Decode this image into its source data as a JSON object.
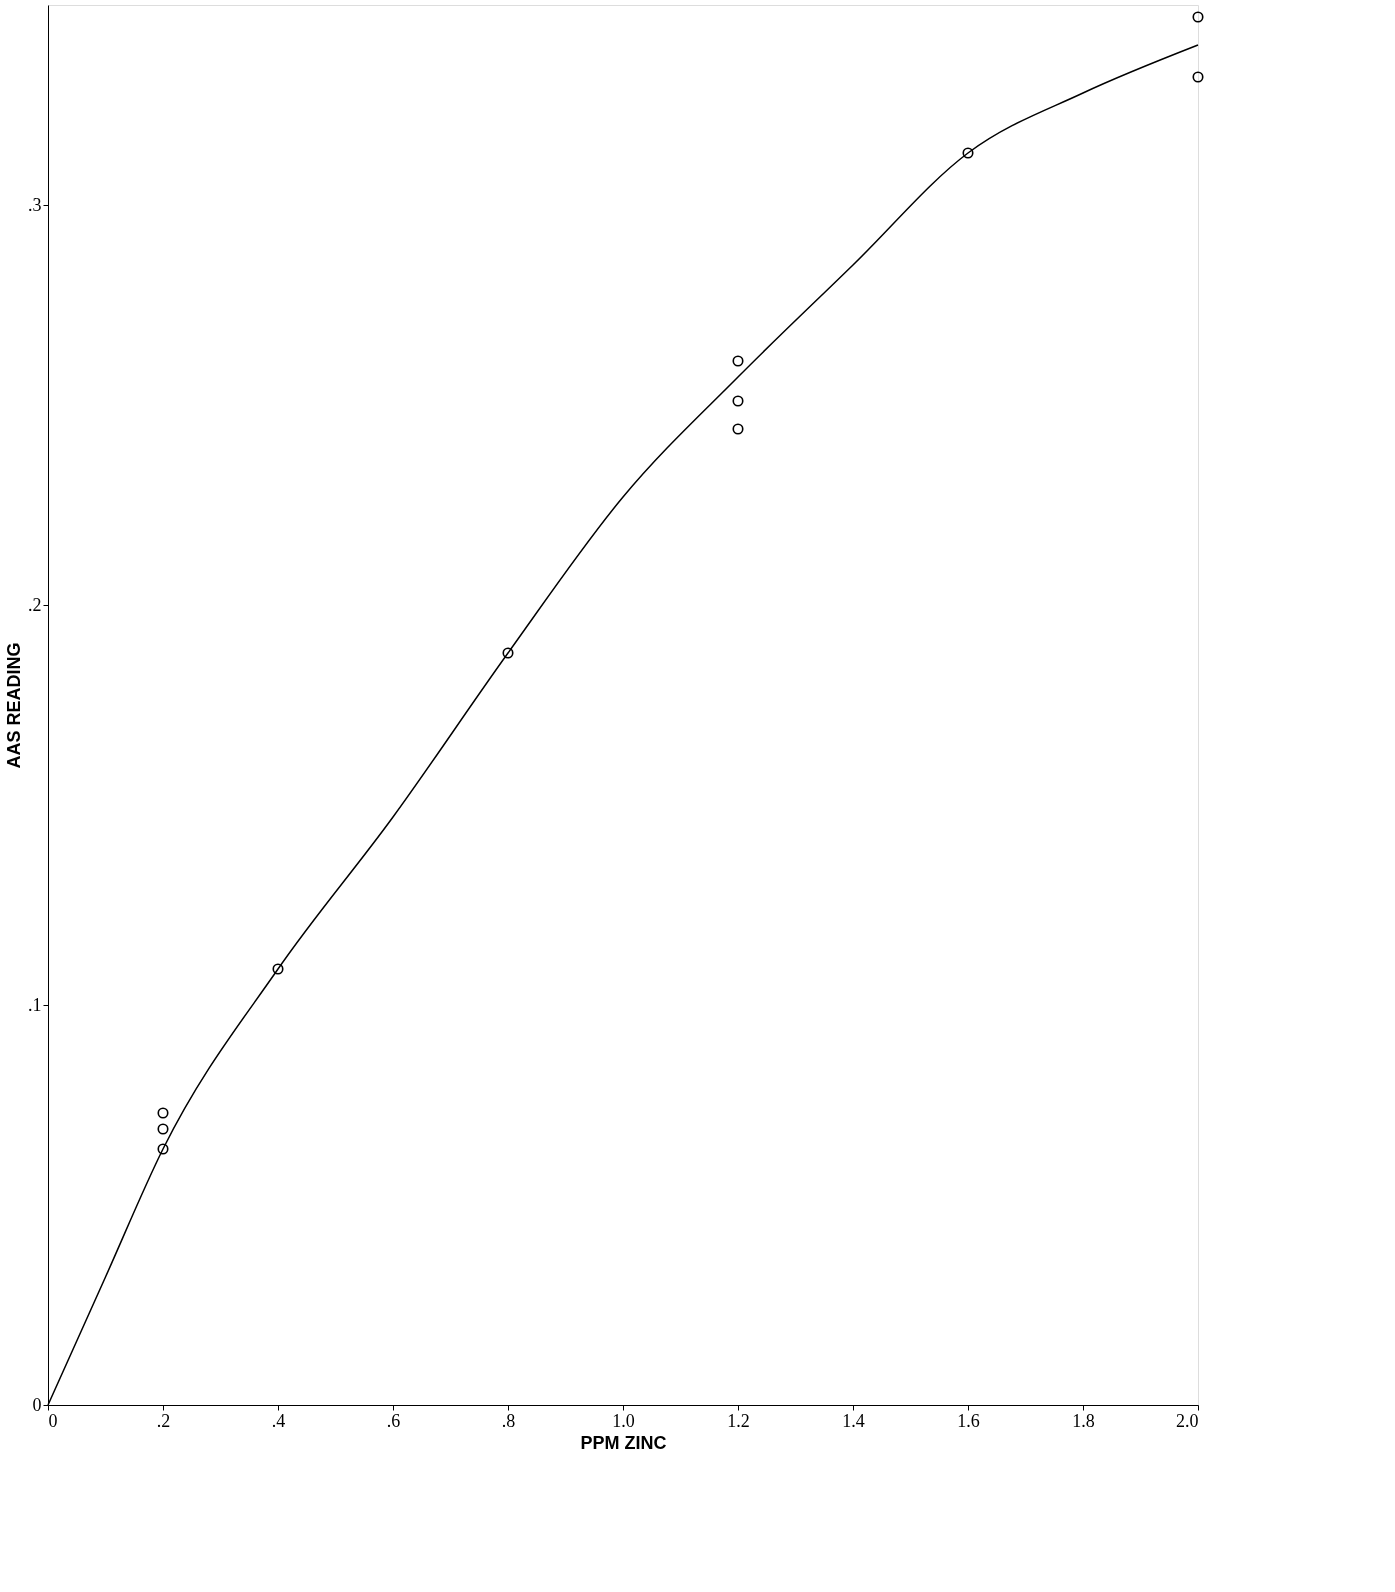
{
  "chart_data": {
    "type": "scatter",
    "xlabel": "PPM ZINC",
    "ylabel": "AAS READING",
    "xlim": [
      0,
      2.0
    ],
    "ylim": [
      0,
      0.35
    ],
    "xticks": [
      {
        "value": 0,
        "label": "0"
      },
      {
        "value": 0.2,
        "label": ".2"
      },
      {
        "value": 0.4,
        "label": ".4"
      },
      {
        "value": 0.6,
        "label": ".6"
      },
      {
        "value": 0.8,
        "label": ".8"
      },
      {
        "value": 1.0,
        "label": "1.0"
      },
      {
        "value": 1.2,
        "label": "1.2"
      },
      {
        "value": 1.4,
        "label": "1.4"
      },
      {
        "value": 1.6,
        "label": "1.6"
      },
      {
        "value": 1.8,
        "label": "1.8"
      },
      {
        "value": 2.0,
        "label": "2.0"
      }
    ],
    "yticks": [
      {
        "value": 0,
        "label": "0"
      },
      {
        "value": 0.1,
        "label": ".1"
      },
      {
        "value": 0.2,
        "label": ".2"
      },
      {
        "value": 0.3,
        "label": ".3"
      }
    ],
    "grid": false,
    "series": [
      {
        "marker": "circle",
        "color": "#000000",
        "x": [
          0.2,
          0.2,
          0.2,
          0.4,
          0.8,
          1.2,
          1.2,
          1.2,
          1.6,
          2.0,
          2.0
        ],
        "values": [
          0.073,
          0.069,
          0.064,
          0.109,
          0.188,
          0.261,
          0.251,
          0.244,
          0.313,
          0.347,
          0.332
        ]
      },
      {
        "type": "line",
        "marker": "none",
        "line_style": "solid",
        "color": "#000000",
        "x": [
          0,
          0.1,
          0.2,
          0.4,
          0.6,
          0.8,
          1.0,
          1.2,
          1.4,
          1.6,
          1.8,
          2.0
        ],
        "values": [
          0,
          0.032,
          0.064,
          0.109,
          0.147,
          0.188,
          0.227,
          0.257,
          0.285,
          0.313,
          0.328,
          0.34
        ]
      }
    ]
  }
}
